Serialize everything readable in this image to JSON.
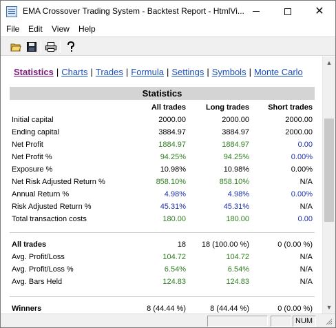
{
  "window": {
    "title": "EMA Crossover Trading System - Backtest Report - HtmlVi...",
    "min_glyph": "",
    "close_glyph": "✕"
  },
  "menu": [
    "File",
    "Edit",
    "View",
    "Help"
  ],
  "toolbar": {
    "icons": [
      "open-folder-icon",
      "save-icon",
      "print-icon",
      "help-icon"
    ]
  },
  "nav": {
    "links": [
      "Statistics",
      "Charts",
      "Trades",
      "Formula",
      "Settings",
      "Symbols",
      "Monte Carlo"
    ],
    "separator": "|",
    "active": "Statistics"
  },
  "report": {
    "section_title": "Statistics",
    "columns": [
      "All trades",
      "Long trades",
      "Short trades"
    ],
    "rows": [
      {
        "label": "Initial capital",
        "values": [
          "2000.00",
          "2000.00",
          "2000.00"
        ],
        "colors": [
          "neutral",
          "neutral",
          "neutral"
        ]
      },
      {
        "label": "Ending capital",
        "values": [
          "3884.97",
          "3884.97",
          "2000.00"
        ],
        "colors": [
          "neutral",
          "neutral",
          "neutral"
        ]
      },
      {
        "label": "Net Profit",
        "values": [
          "1884.97",
          "1884.97",
          "0.00"
        ],
        "colors": [
          "green",
          "green",
          "blue"
        ]
      },
      {
        "label": "Net Profit %",
        "values": [
          "94.25%",
          "94.25%",
          "0.00%"
        ],
        "colors": [
          "green",
          "green",
          "blue"
        ]
      },
      {
        "label": "Exposure %",
        "values": [
          "10.98%",
          "10.98%",
          "0.00%"
        ],
        "colors": [
          "neutral",
          "neutral",
          "neutral"
        ]
      },
      {
        "label": "Net Risk Adjusted Return %",
        "values": [
          "858.10%",
          "858.10%",
          "N/A"
        ],
        "colors": [
          "green",
          "green",
          "neutral"
        ]
      },
      {
        "label": "Annual Return %",
        "values": [
          "4.98%",
          "4.98%",
          "0.00%"
        ],
        "colors": [
          "blue",
          "blue",
          "blue"
        ]
      },
      {
        "label": "Risk Adjusted Return %",
        "values": [
          "45.31%",
          "45.31%",
          "N/A"
        ],
        "colors": [
          "blue",
          "blue",
          "neutral"
        ]
      },
      {
        "label": "Total transaction costs",
        "values": [
          "180.00",
          "180.00",
          "0.00"
        ],
        "colors": [
          "green",
          "green",
          "blue"
        ]
      }
    ],
    "all_trades": {
      "label": "All trades",
      "values": [
        "18",
        "18 (100.00 %)",
        "0 (0.00 %)"
      ]
    },
    "trade_rows": [
      {
        "label": "Avg. Profit/Loss",
        "values": [
          "104.72",
          "104.72",
          "N/A"
        ],
        "colors": [
          "green",
          "green",
          "neutral"
        ]
      },
      {
        "label": "Avg. Profit/Loss %",
        "values": [
          "6.54%",
          "6.54%",
          "N/A"
        ],
        "colors": [
          "green",
          "green",
          "neutral"
        ]
      },
      {
        "label": "Avg. Bars Held",
        "values": [
          "124.83",
          "124.83",
          "N/A"
        ],
        "colors": [
          "green",
          "green",
          "neutral"
        ]
      }
    ],
    "winners": {
      "label": "Winners",
      "values": [
        "8 (44.44 %)",
        "8 (44.44 %)",
        "0 (0.00 %)"
      ]
    }
  },
  "status": {
    "num": "NUM"
  },
  "colors": {
    "green": "#2e7d1e",
    "blue": "#1a2fa8",
    "link": "#1a4fb8",
    "active_link": "#7a1a7a"
  }
}
